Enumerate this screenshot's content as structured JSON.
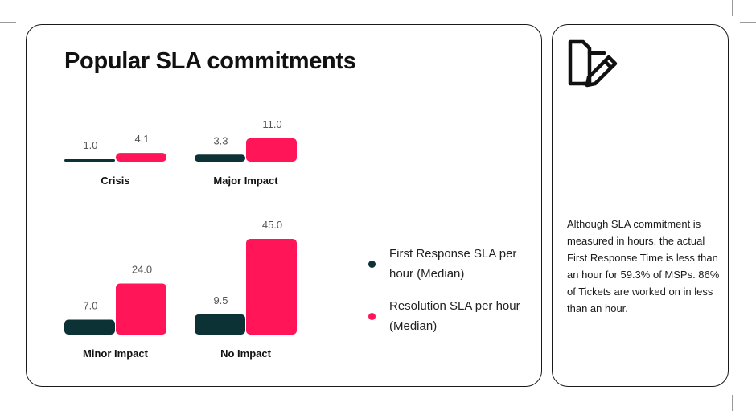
{
  "title": "Popular SLA commitments",
  "legend": [
    {
      "label": "First Response SLA per hour (Median)",
      "color": "#0d3236"
    },
    {
      "label": "Resolution SLA per hour (Median)",
      "color": "#ff1558"
    }
  ],
  "note": {
    "icon": "edit-note-icon",
    "text": "Although SLA commitment is measured in hours, the actual First Response Time is less than an hour for 59.3% of MSPs. 86% of Tickets are worked on in less than an hour."
  },
  "chart_data": [
    {
      "type": "bar",
      "title": "Crisis",
      "series": [
        {
          "name": "First Response SLA per hour (Median)",
          "values": [
            1.0
          ],
          "color": "#0d3236"
        },
        {
          "name": "Resolution SLA per hour (Median)",
          "values": [
            4.1
          ],
          "color": "#ff1558"
        }
      ]
    },
    {
      "type": "bar",
      "title": "Major Impact",
      "series": [
        {
          "name": "First Response SLA per hour (Median)",
          "values": [
            3.3
          ],
          "color": "#0d3236"
        },
        {
          "name": "Resolution SLA per hour (Median)",
          "values": [
            11.0
          ],
          "color": "#ff1558"
        }
      ]
    },
    {
      "type": "bar",
      "title": "Minor Impact",
      "series": [
        {
          "name": "First Response SLA per hour (Median)",
          "values": [
            7.0
          ],
          "color": "#0d3236"
        },
        {
          "name": "Resolution SLA per hour (Median)",
          "values": [
            24.0
          ],
          "color": "#ff1558"
        }
      ]
    },
    {
      "type": "bar",
      "title": "No Impact",
      "series": [
        {
          "name": "First Response SLA per hour (Median)",
          "values": [
            9.5
          ],
          "color": "#0d3236"
        },
        {
          "name": "Resolution SLA per hour (Median)",
          "values": [
            45.0
          ],
          "color": "#ff1558"
        }
      ]
    }
  ]
}
